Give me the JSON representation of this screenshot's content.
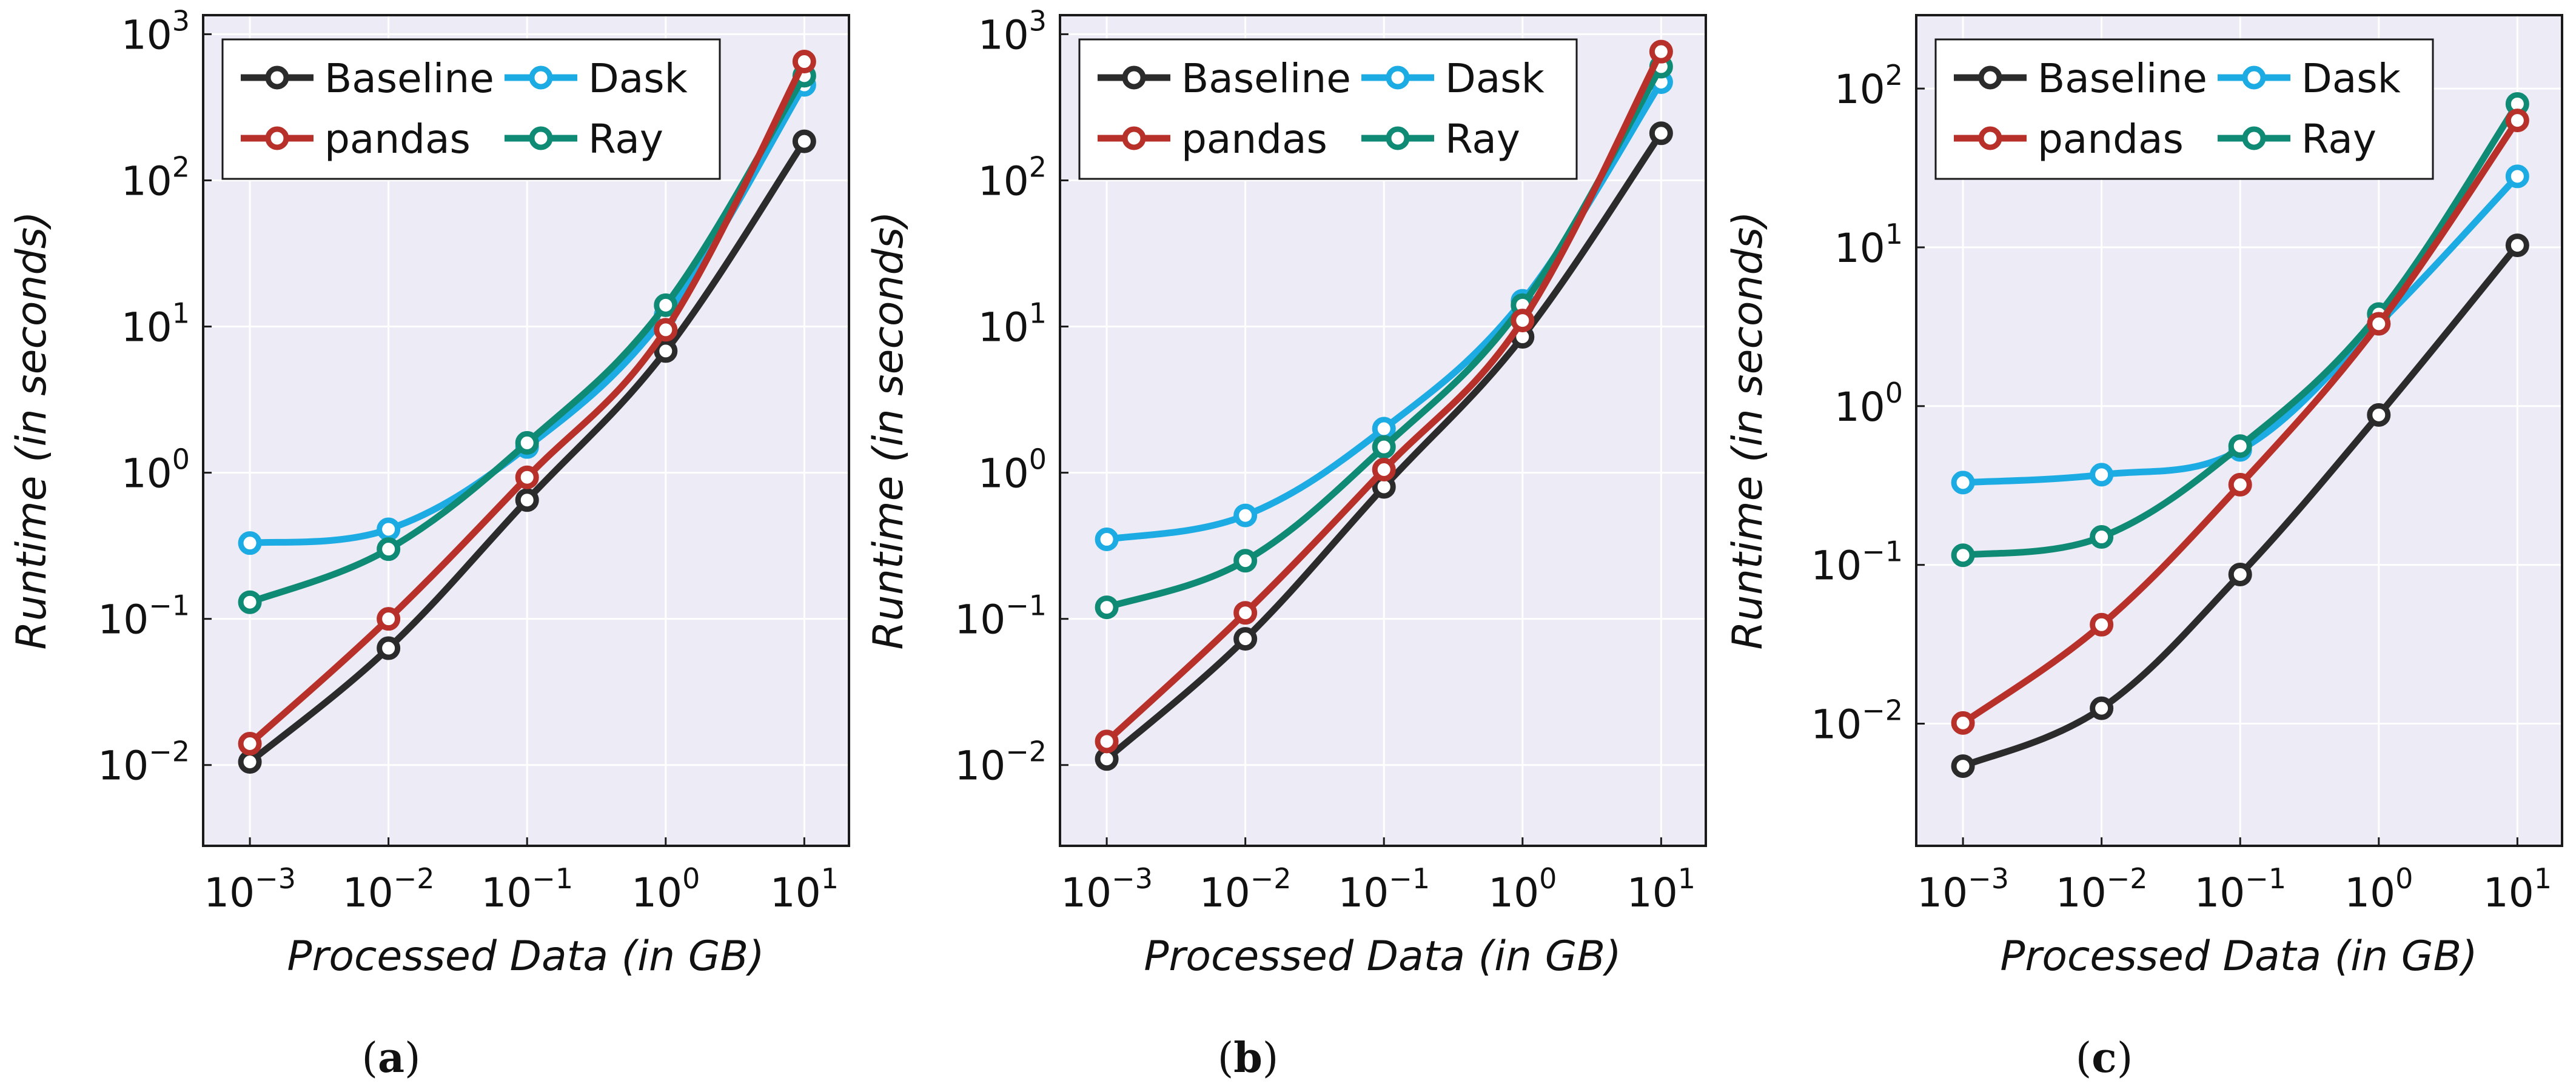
{
  "legend": {
    "baseline": "Baseline",
    "dask": "Dask",
    "pandas": "pandas",
    "ray": "Ray"
  },
  "colors": {
    "background": "#ecebf6",
    "grid": "#ffffff",
    "Baseline": "#2b2b2b",
    "pandas": "#b7312a",
    "Dask": "#1cabe2",
    "Ray": "#0f8a74"
  },
  "chart_data": [
    {
      "type": "line",
      "caption_letter": "a",
      "xlabel": "Processed Data (in GB)",
      "ylabel": "Runtime (in seconds)",
      "xscale": "log",
      "yscale": "log",
      "x": [
        0.001,
        0.01,
        0.1,
        1,
        10
      ],
      "xlim": [
        0.00046,
        21
      ],
      "ylim": [
        0.0028,
        1350
      ],
      "xticks": [
        {
          "base": "10",
          "exp": "−3"
        },
        {
          "base": "10",
          "exp": "−2"
        },
        {
          "base": "10",
          "exp": "−1"
        },
        {
          "base": "10",
          "exp": "0"
        },
        {
          "base": "10",
          "exp": "1"
        }
      ],
      "yticks": [
        {
          "value": 0.01,
          "base": "10",
          "exp": "−2"
        },
        {
          "value": 0.1,
          "base": "10",
          "exp": "−1"
        },
        {
          "value": 1,
          "base": "10",
          "exp": "0"
        },
        {
          "value": 10,
          "base": "10",
          "exp": "1"
        },
        {
          "value": 100,
          "base": "10",
          "exp": "2"
        },
        {
          "value": 1000,
          "base": "10",
          "exp": "3"
        }
      ],
      "grid": true,
      "legend_position": "top-left",
      "series": [
        {
          "name": "Baseline",
          "values": [
            0.0105,
            0.063,
            0.65,
            6.8,
            185
          ]
        },
        {
          "name": "Dask",
          "values": [
            0.33,
            0.41,
            1.5,
            12,
            450
          ]
        },
        {
          "name": "pandas",
          "values": [
            0.014,
            0.1,
            0.93,
            9.5,
            650
          ]
        },
        {
          "name": "Ray",
          "values": [
            0.13,
            0.3,
            1.6,
            14,
            520
          ]
        }
      ]
    },
    {
      "type": "line",
      "caption_letter": "b",
      "xlabel": "Processed Data (in GB)",
      "ylabel": "Runtime (in seconds)",
      "xscale": "log",
      "yscale": "log",
      "x": [
        0.001,
        0.01,
        0.1,
        1,
        10
      ],
      "xlim": [
        0.00046,
        21
      ],
      "ylim": [
        0.0028,
        1350
      ],
      "xticks": [
        {
          "base": "10",
          "exp": "−3"
        },
        {
          "base": "10",
          "exp": "−2"
        },
        {
          "base": "10",
          "exp": "−1"
        },
        {
          "base": "10",
          "exp": "0"
        },
        {
          "base": "10",
          "exp": "1"
        }
      ],
      "yticks": [
        {
          "value": 0.01,
          "base": "10",
          "exp": "−2"
        },
        {
          "value": 0.1,
          "base": "10",
          "exp": "−1"
        },
        {
          "value": 1,
          "base": "10",
          "exp": "0"
        },
        {
          "value": 10,
          "base": "10",
          "exp": "1"
        },
        {
          "value": 100,
          "base": "10",
          "exp": "2"
        },
        {
          "value": 1000,
          "base": "10",
          "exp": "3"
        }
      ],
      "grid": true,
      "legend_position": "top-left",
      "series": [
        {
          "name": "Baseline",
          "values": [
            0.011,
            0.073,
            0.8,
            8.5,
            210
          ]
        },
        {
          "name": "Dask",
          "values": [
            0.35,
            0.51,
            2.0,
            15,
            470
          ]
        },
        {
          "name": "pandas",
          "values": [
            0.0145,
            0.11,
            1.05,
            11,
            760
          ]
        },
        {
          "name": "Ray",
          "values": [
            0.12,
            0.25,
            1.5,
            14,
            600
          ]
        }
      ]
    },
    {
      "type": "line",
      "caption_letter": "c",
      "xlabel": "Processed Data (in GB)",
      "ylabel": "Runtime (in seconds)",
      "xscale": "log",
      "yscale": "log",
      "x": [
        0.001,
        0.01,
        0.1,
        1,
        10
      ],
      "xlim": [
        0.00046,
        21
      ],
      "ylim": [
        0.0017,
        290
      ],
      "xticks": [
        {
          "base": "10",
          "exp": "−3"
        },
        {
          "base": "10",
          "exp": "−2"
        },
        {
          "base": "10",
          "exp": "−1"
        },
        {
          "base": "10",
          "exp": "0"
        },
        {
          "base": "10",
          "exp": "1"
        }
      ],
      "yticks": [
        {
          "value": 0.01,
          "base": "10",
          "exp": "−2"
        },
        {
          "value": 0.1,
          "base": "10",
          "exp": "−1"
        },
        {
          "value": 1,
          "base": "10",
          "exp": "0"
        },
        {
          "value": 10,
          "base": "10",
          "exp": "1"
        },
        {
          "value": 100,
          "base": "10",
          "exp": "2"
        }
      ],
      "grid": true,
      "legend_position": "top-left",
      "series": [
        {
          "name": "Baseline",
          "values": [
            0.0054,
            0.0125,
            0.087,
            0.88,
            10.3
          ]
        },
        {
          "name": "Dask",
          "values": [
            0.33,
            0.37,
            0.53,
            3.3,
            28
          ]
        },
        {
          "name": "pandas",
          "values": [
            0.0101,
            0.042,
            0.32,
            3.3,
            63
          ]
        },
        {
          "name": "Ray",
          "values": [
            0.115,
            0.15,
            0.56,
            3.8,
            80
          ]
        }
      ]
    }
  ]
}
